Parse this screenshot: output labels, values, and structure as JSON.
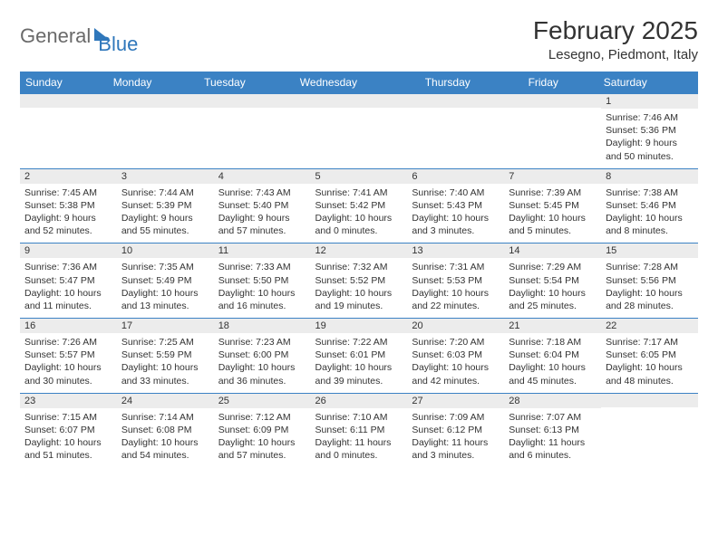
{
  "brand": {
    "part1": "General",
    "part2": "Blue"
  },
  "header": {
    "month": "February 2025",
    "location": "Lesegno, Piedmont, Italy"
  },
  "colors": {
    "header_bg": "#3b82c4",
    "header_text": "#ffffff",
    "daynum_bg": "#ececec",
    "border": "#3b82c4",
    "text": "#333333",
    "logo_gray": "#6a6a6a",
    "logo_blue": "#2f77bb"
  },
  "fonts": {
    "title_size": 28,
    "location_size": 15,
    "dow_size": 12,
    "daynum_size": 11,
    "body_size": 10.5
  },
  "dow": [
    "Sunday",
    "Monday",
    "Tuesday",
    "Wednesday",
    "Thursday",
    "Friday",
    "Saturday"
  ],
  "weeks": [
    [
      {
        "n": "",
        "sr": "",
        "ss": "",
        "dl": ""
      },
      {
        "n": "",
        "sr": "",
        "ss": "",
        "dl": ""
      },
      {
        "n": "",
        "sr": "",
        "ss": "",
        "dl": ""
      },
      {
        "n": "",
        "sr": "",
        "ss": "",
        "dl": ""
      },
      {
        "n": "",
        "sr": "",
        "ss": "",
        "dl": ""
      },
      {
        "n": "",
        "sr": "",
        "ss": "",
        "dl": ""
      },
      {
        "n": "1",
        "sr": "Sunrise: 7:46 AM",
        "ss": "Sunset: 5:36 PM",
        "dl": "Daylight: 9 hours and 50 minutes."
      }
    ],
    [
      {
        "n": "2",
        "sr": "Sunrise: 7:45 AM",
        "ss": "Sunset: 5:38 PM",
        "dl": "Daylight: 9 hours and 52 minutes."
      },
      {
        "n": "3",
        "sr": "Sunrise: 7:44 AM",
        "ss": "Sunset: 5:39 PM",
        "dl": "Daylight: 9 hours and 55 minutes."
      },
      {
        "n": "4",
        "sr": "Sunrise: 7:43 AM",
        "ss": "Sunset: 5:40 PM",
        "dl": "Daylight: 9 hours and 57 minutes."
      },
      {
        "n": "5",
        "sr": "Sunrise: 7:41 AM",
        "ss": "Sunset: 5:42 PM",
        "dl": "Daylight: 10 hours and 0 minutes."
      },
      {
        "n": "6",
        "sr": "Sunrise: 7:40 AM",
        "ss": "Sunset: 5:43 PM",
        "dl": "Daylight: 10 hours and 3 minutes."
      },
      {
        "n": "7",
        "sr": "Sunrise: 7:39 AM",
        "ss": "Sunset: 5:45 PM",
        "dl": "Daylight: 10 hours and 5 minutes."
      },
      {
        "n": "8",
        "sr": "Sunrise: 7:38 AM",
        "ss": "Sunset: 5:46 PM",
        "dl": "Daylight: 10 hours and 8 minutes."
      }
    ],
    [
      {
        "n": "9",
        "sr": "Sunrise: 7:36 AM",
        "ss": "Sunset: 5:47 PM",
        "dl": "Daylight: 10 hours and 11 minutes."
      },
      {
        "n": "10",
        "sr": "Sunrise: 7:35 AM",
        "ss": "Sunset: 5:49 PM",
        "dl": "Daylight: 10 hours and 13 minutes."
      },
      {
        "n": "11",
        "sr": "Sunrise: 7:33 AM",
        "ss": "Sunset: 5:50 PM",
        "dl": "Daylight: 10 hours and 16 minutes."
      },
      {
        "n": "12",
        "sr": "Sunrise: 7:32 AM",
        "ss": "Sunset: 5:52 PM",
        "dl": "Daylight: 10 hours and 19 minutes."
      },
      {
        "n": "13",
        "sr": "Sunrise: 7:31 AM",
        "ss": "Sunset: 5:53 PM",
        "dl": "Daylight: 10 hours and 22 minutes."
      },
      {
        "n": "14",
        "sr": "Sunrise: 7:29 AM",
        "ss": "Sunset: 5:54 PM",
        "dl": "Daylight: 10 hours and 25 minutes."
      },
      {
        "n": "15",
        "sr": "Sunrise: 7:28 AM",
        "ss": "Sunset: 5:56 PM",
        "dl": "Daylight: 10 hours and 28 minutes."
      }
    ],
    [
      {
        "n": "16",
        "sr": "Sunrise: 7:26 AM",
        "ss": "Sunset: 5:57 PM",
        "dl": "Daylight: 10 hours and 30 minutes."
      },
      {
        "n": "17",
        "sr": "Sunrise: 7:25 AM",
        "ss": "Sunset: 5:59 PM",
        "dl": "Daylight: 10 hours and 33 minutes."
      },
      {
        "n": "18",
        "sr": "Sunrise: 7:23 AM",
        "ss": "Sunset: 6:00 PM",
        "dl": "Daylight: 10 hours and 36 minutes."
      },
      {
        "n": "19",
        "sr": "Sunrise: 7:22 AM",
        "ss": "Sunset: 6:01 PM",
        "dl": "Daylight: 10 hours and 39 minutes."
      },
      {
        "n": "20",
        "sr": "Sunrise: 7:20 AM",
        "ss": "Sunset: 6:03 PM",
        "dl": "Daylight: 10 hours and 42 minutes."
      },
      {
        "n": "21",
        "sr": "Sunrise: 7:18 AM",
        "ss": "Sunset: 6:04 PM",
        "dl": "Daylight: 10 hours and 45 minutes."
      },
      {
        "n": "22",
        "sr": "Sunrise: 7:17 AM",
        "ss": "Sunset: 6:05 PM",
        "dl": "Daylight: 10 hours and 48 minutes."
      }
    ],
    [
      {
        "n": "23",
        "sr": "Sunrise: 7:15 AM",
        "ss": "Sunset: 6:07 PM",
        "dl": "Daylight: 10 hours and 51 minutes."
      },
      {
        "n": "24",
        "sr": "Sunrise: 7:14 AM",
        "ss": "Sunset: 6:08 PM",
        "dl": "Daylight: 10 hours and 54 minutes."
      },
      {
        "n": "25",
        "sr": "Sunrise: 7:12 AM",
        "ss": "Sunset: 6:09 PM",
        "dl": "Daylight: 10 hours and 57 minutes."
      },
      {
        "n": "26",
        "sr": "Sunrise: 7:10 AM",
        "ss": "Sunset: 6:11 PM",
        "dl": "Daylight: 11 hours and 0 minutes."
      },
      {
        "n": "27",
        "sr": "Sunrise: 7:09 AM",
        "ss": "Sunset: 6:12 PM",
        "dl": "Daylight: 11 hours and 3 minutes."
      },
      {
        "n": "28",
        "sr": "Sunrise: 7:07 AM",
        "ss": "Sunset: 6:13 PM",
        "dl": "Daylight: 11 hours and 6 minutes."
      },
      {
        "n": "",
        "sr": "",
        "ss": "",
        "dl": ""
      }
    ]
  ]
}
